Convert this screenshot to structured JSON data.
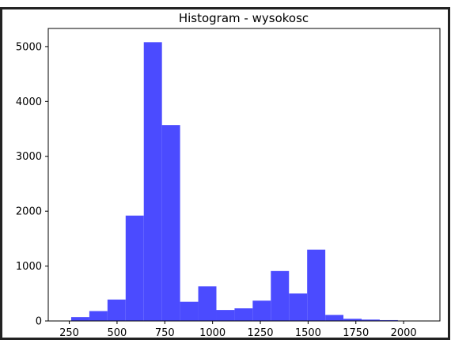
{
  "chart_data": {
    "type": "bar",
    "title": "Histogram - wysokosc",
    "xlabel": "",
    "ylabel": "",
    "bin_edges": [
      260,
      355,
      450,
      545,
      640,
      735,
      830,
      925,
      1020,
      1115,
      1210,
      1305,
      1400,
      1495,
      1590,
      1685,
      1780,
      1875,
      1970,
      2065
    ],
    "values": [
      70,
      180,
      390,
      1920,
      5080,
      3570,
      350,
      630,
      200,
      230,
      370,
      910,
      500,
      1300,
      110,
      40,
      25,
      15,
      5
    ],
    "xlim": [
      140,
      2190
    ],
    "ylim": [
      0,
      5330
    ],
    "xticks": [
      250,
      500,
      750,
      1000,
      1250,
      1500,
      1750,
      2000
    ],
    "yticks": [
      0,
      1000,
      2000,
      3000,
      4000,
      5000
    ],
    "bar_color": "#4b4bff",
    "grid": false
  }
}
